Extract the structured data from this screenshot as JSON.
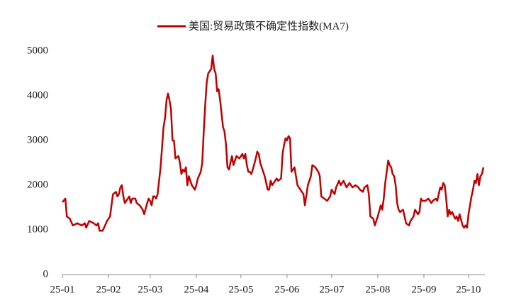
{
  "chart_data": {
    "type": "line",
    "x": [
      0,
      2,
      3,
      5,
      7,
      10,
      13,
      15,
      16,
      18,
      21,
      23,
      24,
      25,
      27,
      28,
      30,
      32,
      34,
      36,
      37,
      38,
      39,
      40,
      41,
      42,
      44,
      45,
      46,
      47,
      49,
      50,
      52,
      54,
      55,
      57,
      58,
      59,
      60,
      61,
      62,
      63,
      64,
      66,
      68,
      69,
      70,
      71,
      72,
      73,
      74,
      75,
      76,
      78,
      79,
      80,
      81,
      82,
      83,
      84,
      85,
      86,
      87,
      89,
      90,
      91,
      93,
      94,
      95,
      96,
      97,
      98,
      100,
      101,
      102,
      103,
      104,
      105,
      106,
      108,
      109,
      110,
      111,
      112,
      113,
      114,
      115,
      117,
      119,
      121,
      122,
      123,
      124,
      125,
      126,
      127,
      128,
      130,
      131,
      132,
      133,
      135,
      136,
      138,
      139,
      140,
      141,
      142,
      144,
      145,
      147,
      148,
      149,
      150,
      151,
      152,
      153,
      154,
      156,
      157,
      158,
      160,
      162,
      163,
      165,
      167,
      168,
      170,
      172,
      173,
      174,
      176,
      178,
      180,
      181,
      183,
      184,
      186,
      187,
      188,
      189,
      191,
      193,
      195,
      197,
      199,
      200,
      202,
      203,
      205,
      206,
      207,
      209,
      210,
      212,
      214,
      215,
      216,
      217,
      219,
      220,
      221,
      222,
      223,
      224,
      225,
      226,
      227,
      229,
      230,
      231,
      233,
      234,
      236,
      237,
      239,
      240,
      241,
      242,
      244,
      246,
      248,
      249,
      251,
      252,
      253,
      254,
      255,
      256,
      257,
      258,
      259,
      260,
      261,
      262,
      264,
      265,
      266,
      267,
      269,
      270,
      271,
      272,
      273,
      275,
      276,
      277,
      278,
      279,
      280,
      281,
      282,
      283
    ],
    "series": [
      {
        "name": "美国:贸易政策不确定性指数(MA7)",
        "color": "#c00000",
        "values": [
          1620,
          1700,
          1300,
          1250,
          1100,
          1150,
          1100,
          1150,
          1050,
          1200,
          1150,
          1100,
          1150,
          980,
          980,
          1050,
          1200,
          1300,
          1800,
          1850,
          1750,
          1800,
          1950,
          2000,
          1750,
          1600,
          1700,
          1750,
          1600,
          1700,
          1700,
          1600,
          1550,
          1450,
          1350,
          1600,
          1700,
          1650,
          1550,
          1750,
          1750,
          1700,
          1800,
          2400,
          3300,
          3500,
          3900,
          4050,
          3900,
          3700,
          3000,
          3000,
          2600,
          2650,
          2500,
          2250,
          2350,
          2300,
          2400,
          2000,
          2200,
          2100,
          2000,
          1900,
          2000,
          2150,
          2300,
          2500,
          3200,
          3800,
          4300,
          4500,
          4600,
          4900,
          4600,
          4500,
          4100,
          4150,
          3900,
          3300,
          3200,
          2900,
          2400,
          2350,
          2500,
          2650,
          2450,
          2650,
          2600,
          2700,
          2600,
          2700,
          2450,
          2300,
          2300,
          2250,
          2350,
          2600,
          2750,
          2700,
          2500,
          2300,
          2200,
          1900,
          1900,
          2100,
          2000,
          2050,
          2150,
          2100,
          2150,
          2700,
          2900,
          3050,
          3000,
          3100,
          3050,
          2300,
          2400,
          2200,
          2000,
          1900,
          1800,
          1550,
          2000,
          2200,
          2450,
          2400,
          2300,
          2200,
          1750,
          1700,
          1650,
          1750,
          1900,
          1800,
          1950,
          2100,
          2000,
          2050,
          2100,
          1950,
          2050,
          1950,
          2000,
          1950,
          1900,
          1850,
          1950,
          2000,
          1800,
          1300,
          1250,
          1100,
          1300,
          1550,
          1450,
          1700,
          2050,
          2550,
          2450,
          2400,
          2250,
          2200,
          2000,
          1600,
          1450,
          1400,
          1450,
          1300,
          1150,
          1100,
          1200,
          1300,
          1450,
          1350,
          1400,
          1700,
          1650,
          1650,
          1700,
          1600,
          1650,
          1700,
          1650,
          1800,
          1950,
          1900,
          2050,
          2000,
          1700,
          1300,
          1450,
          1350,
          1400,
          1250,
          1300,
          1200,
          1350,
          1100,
          1050,
          1100,
          1050,
          1350,
          1750,
          1900,
          2100,
          2050,
          2250,
          2000,
          2200,
          2250,
          2400
        ]
      }
    ],
    "xlim": [
      0,
      284
    ],
    "xticks": [
      {
        "value": 0,
        "label": "25-01"
      },
      {
        "value": 31,
        "label": "25-02"
      },
      {
        "value": 59,
        "label": "25-03"
      },
      {
        "value": 90,
        "label": "25-04"
      },
      {
        "value": 120,
        "label": "25-05"
      },
      {
        "value": 151,
        "label": "25-06"
      },
      {
        "value": 181,
        "label": "25-07"
      },
      {
        "value": 212,
        "label": "25-08"
      },
      {
        "value": 243,
        "label": "25-09"
      },
      {
        "value": 273,
        "label": "25-10"
      }
    ],
    "ylim": [
      0,
      5000
    ],
    "yticks": [
      0,
      1000,
      2000,
      3000,
      4000,
      5000
    ],
    "legend": "top"
  }
}
